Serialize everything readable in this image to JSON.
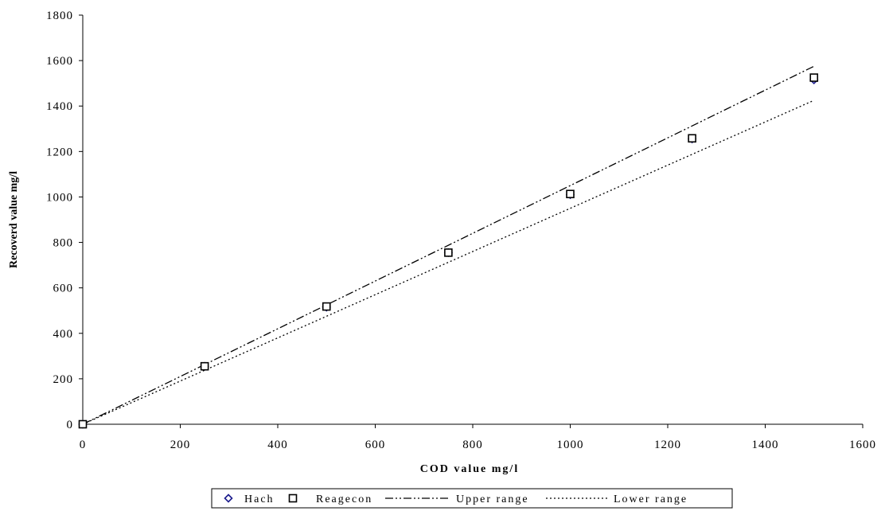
{
  "chart_data": {
    "type": "scatter",
    "title": "",
    "xlabel": "COD value mg/l",
    "ylabel": "Recoverd value mg/l",
    "xlim": [
      0,
      1600
    ],
    "ylim": [
      0,
      1800
    ],
    "xticks": [
      "0",
      "200",
      "400",
      "600",
      "800",
      "1000",
      "1200",
      "1400",
      "1600"
    ],
    "yticks": [
      "0",
      "200",
      "400",
      "600",
      "800",
      "1000",
      "1200",
      "1400",
      "1600",
      "1800"
    ],
    "grid": false,
    "legend_position": "bottom",
    "series": [
      {
        "name": "Hach",
        "kind": "points",
        "marker": "diamond",
        "color": "#1a1a8c",
        "x": [
          0,
          250,
          500,
          750,
          1000,
          1250,
          1500
        ],
        "y": [
          0,
          255,
          515,
          755,
          1010,
          1255,
          1515
        ]
      },
      {
        "name": "Reagecon",
        "kind": "points",
        "marker": "square",
        "color": "#000000",
        "x": [
          0,
          250,
          500,
          750,
          1000,
          1250,
          1500
        ],
        "y": [
          0,
          255,
          518,
          755,
          1013,
          1258,
          1525
        ]
      },
      {
        "name": "Upper range",
        "kind": "line",
        "dash": "dash-dot-dot",
        "color": "#000000",
        "x": [
          0,
          1500
        ],
        "y": [
          0,
          1575
        ]
      },
      {
        "name": "Lower range",
        "kind": "line",
        "dash": "dotted",
        "color": "#000000",
        "x": [
          0,
          1500
        ],
        "y": [
          0,
          1425
        ]
      }
    ]
  }
}
